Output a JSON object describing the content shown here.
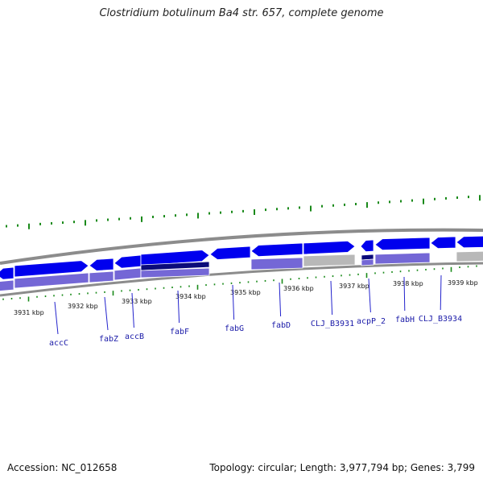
{
  "title": "Clostridium botulinum Ba4 str. 657, complete genome",
  "footer": {
    "accession": "Accession: NC_012658",
    "summary": "Topology: circular; Length: 3,977,794 bp; Genes: 3,799"
  },
  "colors": {
    "gene_forward": "#0000ee",
    "gene_dark": "#0b0b7a",
    "gene_purple": "#7467d6",
    "gene_grey": "#b8b8b8",
    "backbone": "#8c8c8c",
    "ticks": "#1a8a1a",
    "label_line": "#2222cc"
  },
  "kbp_labels": [
    "3931 kbp",
    "3932 kbp",
    "3933 kbp",
    "3934 kbp",
    "3935 kbp",
    "3936 kbp",
    "3937 kbp",
    "3938 kbp",
    "3939 kbp"
  ],
  "genes": [
    "accC",
    "fabZ",
    "accB",
    "fabF",
    "fabG",
    "fabD",
    "CLJ_B3931",
    "acpP_2",
    "fabH",
    "CLJ_B3934"
  ]
}
